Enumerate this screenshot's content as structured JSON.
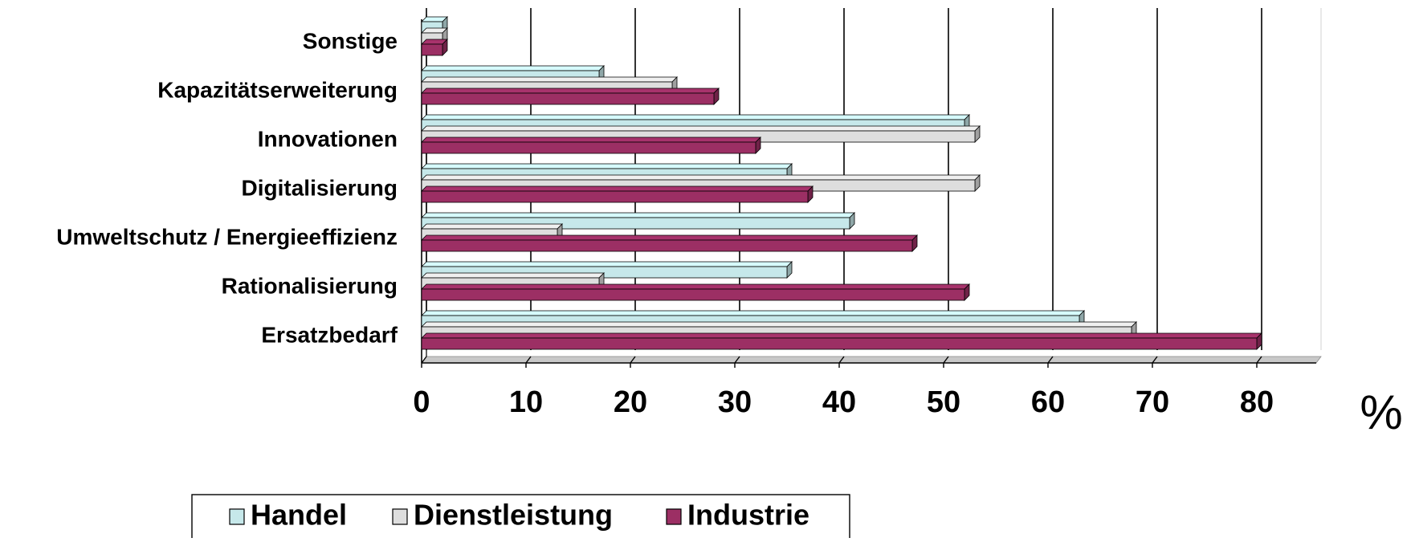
{
  "chart_data": {
    "type": "bar",
    "orientation": "horizontal",
    "style": "3d-clustered",
    "categories": [
      "Sonstige",
      "Kapazitätserweiterung",
      "Innovationen",
      "Digitalisierung",
      "Umweltschutz / Energieeffizienz",
      "Rationalisierung",
      "Ersatzbedarf"
    ],
    "series": [
      {
        "name": "Handel",
        "color": "#c6e8ea",
        "values": [
          2,
          17,
          52,
          35,
          41,
          35,
          63
        ]
      },
      {
        "name": "Dienstleistung",
        "color": "#dedede",
        "values": [
          2,
          24,
          53,
          53,
          13,
          17,
          68
        ]
      },
      {
        "name": "Industrie",
        "color": "#9c2f64",
        "values": [
          2,
          28,
          32,
          37,
          47,
          52,
          80
        ]
      }
    ],
    "x_ticks": [
      "0",
      "10",
      "20",
      "30",
      "40",
      "50",
      "60",
      "70",
      "80"
    ],
    "xlim": [
      0,
      84
    ],
    "unit_label": "%",
    "grid": true,
    "legend_position": "bottom"
  }
}
